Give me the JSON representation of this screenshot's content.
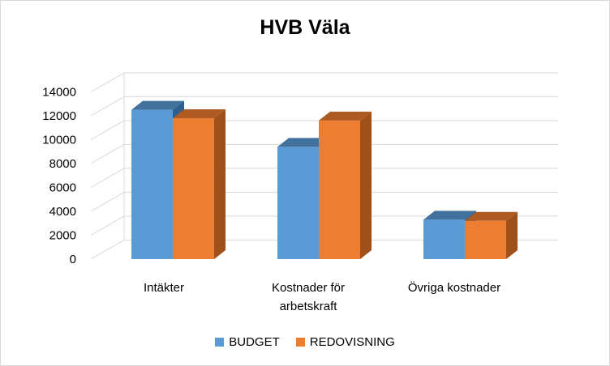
{
  "chart_data": {
    "type": "bar",
    "title": "HVB Väla",
    "categories": [
      [
        "Intäkter"
      ],
      [
        "Kostnader för",
        "arbetskraft"
      ],
      [
        "Övriga kostnader"
      ]
    ],
    "series": [
      {
        "name": "BUDGET",
        "values": [
          12500,
          9400,
          3300
        ],
        "color": "#5b9bd5",
        "top": "#41719c",
        "side": "#2e5f8f"
      },
      {
        "name": "REDOVISNING",
        "values": [
          11800,
          11600,
          3200
        ],
        "color": "#ed7d31",
        "top": "#ae5a21",
        "side": "#a0501b"
      }
    ],
    "ylim": [
      0,
      14000
    ],
    "yticks": [
      "0",
      "2000",
      "4000",
      "6000",
      "8000",
      "10000",
      "12000",
      "14000"
    ],
    "grid": true,
    "legend_position": "bottom"
  }
}
